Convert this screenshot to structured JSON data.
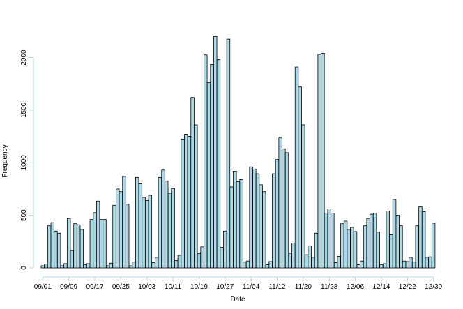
{
  "chart_data": {
    "type": "bar",
    "xlabel": "Date",
    "ylabel": "Frequency",
    "ylim": [
      0,
      2250
    ],
    "yticks": [
      0,
      500,
      1000,
      1500,
      2000
    ],
    "x_tick_labels": [
      "09/01",
      "09/09",
      "09/17",
      "09/25",
      "10/03",
      "10/11",
      "10/19",
      "10/27",
      "11/04",
      "11/12",
      "11/20",
      "11/28",
      "12/06",
      "12/14",
      "12/22",
      "12/30"
    ],
    "grid": false,
    "legend": "none",
    "colors": {
      "bar_fill": "#add8e6",
      "bar_stroke": "#000000",
      "axis": "#add8e6"
    },
    "values": [
      20,
      35,
      400,
      430,
      350,
      330,
      20,
      40,
      470,
      165,
      420,
      410,
      365,
      30,
      40,
      460,
      525,
      635,
      460,
      460,
      20,
      45,
      595,
      750,
      725,
      870,
      605,
      20,
      55,
      860,
      800,
      670,
      640,
      690,
      50,
      100,
      860,
      930,
      825,
      710,
      755,
      70,
      120,
      1225,
      1270,
      1250,
      1620,
      1360,
      135,
      200,
      2025,
      1760,
      1935,
      2200,
      1980,
      195,
      350,
      2175,
      770,
      920,
      820,
      840,
      55,
      65,
      960,
      940,
      895,
      790,
      725,
      30,
      60,
      895,
      1030,
      1235,
      1130,
      1095,
      140,
      235,
      1910,
      1720,
      1360,
      125,
      210,
      100,
      330,
      2030,
      2040,
      520,
      560,
      520,
      50,
      110,
      420,
      445,
      365,
      385,
      345,
      30,
      65,
      400,
      470,
      510,
      520,
      340,
      30,
      40,
      540,
      315,
      650,
      500,
      400,
      65,
      60,
      100,
      55,
      400,
      580,
      535,
      100,
      105,
      425
    ]
  }
}
